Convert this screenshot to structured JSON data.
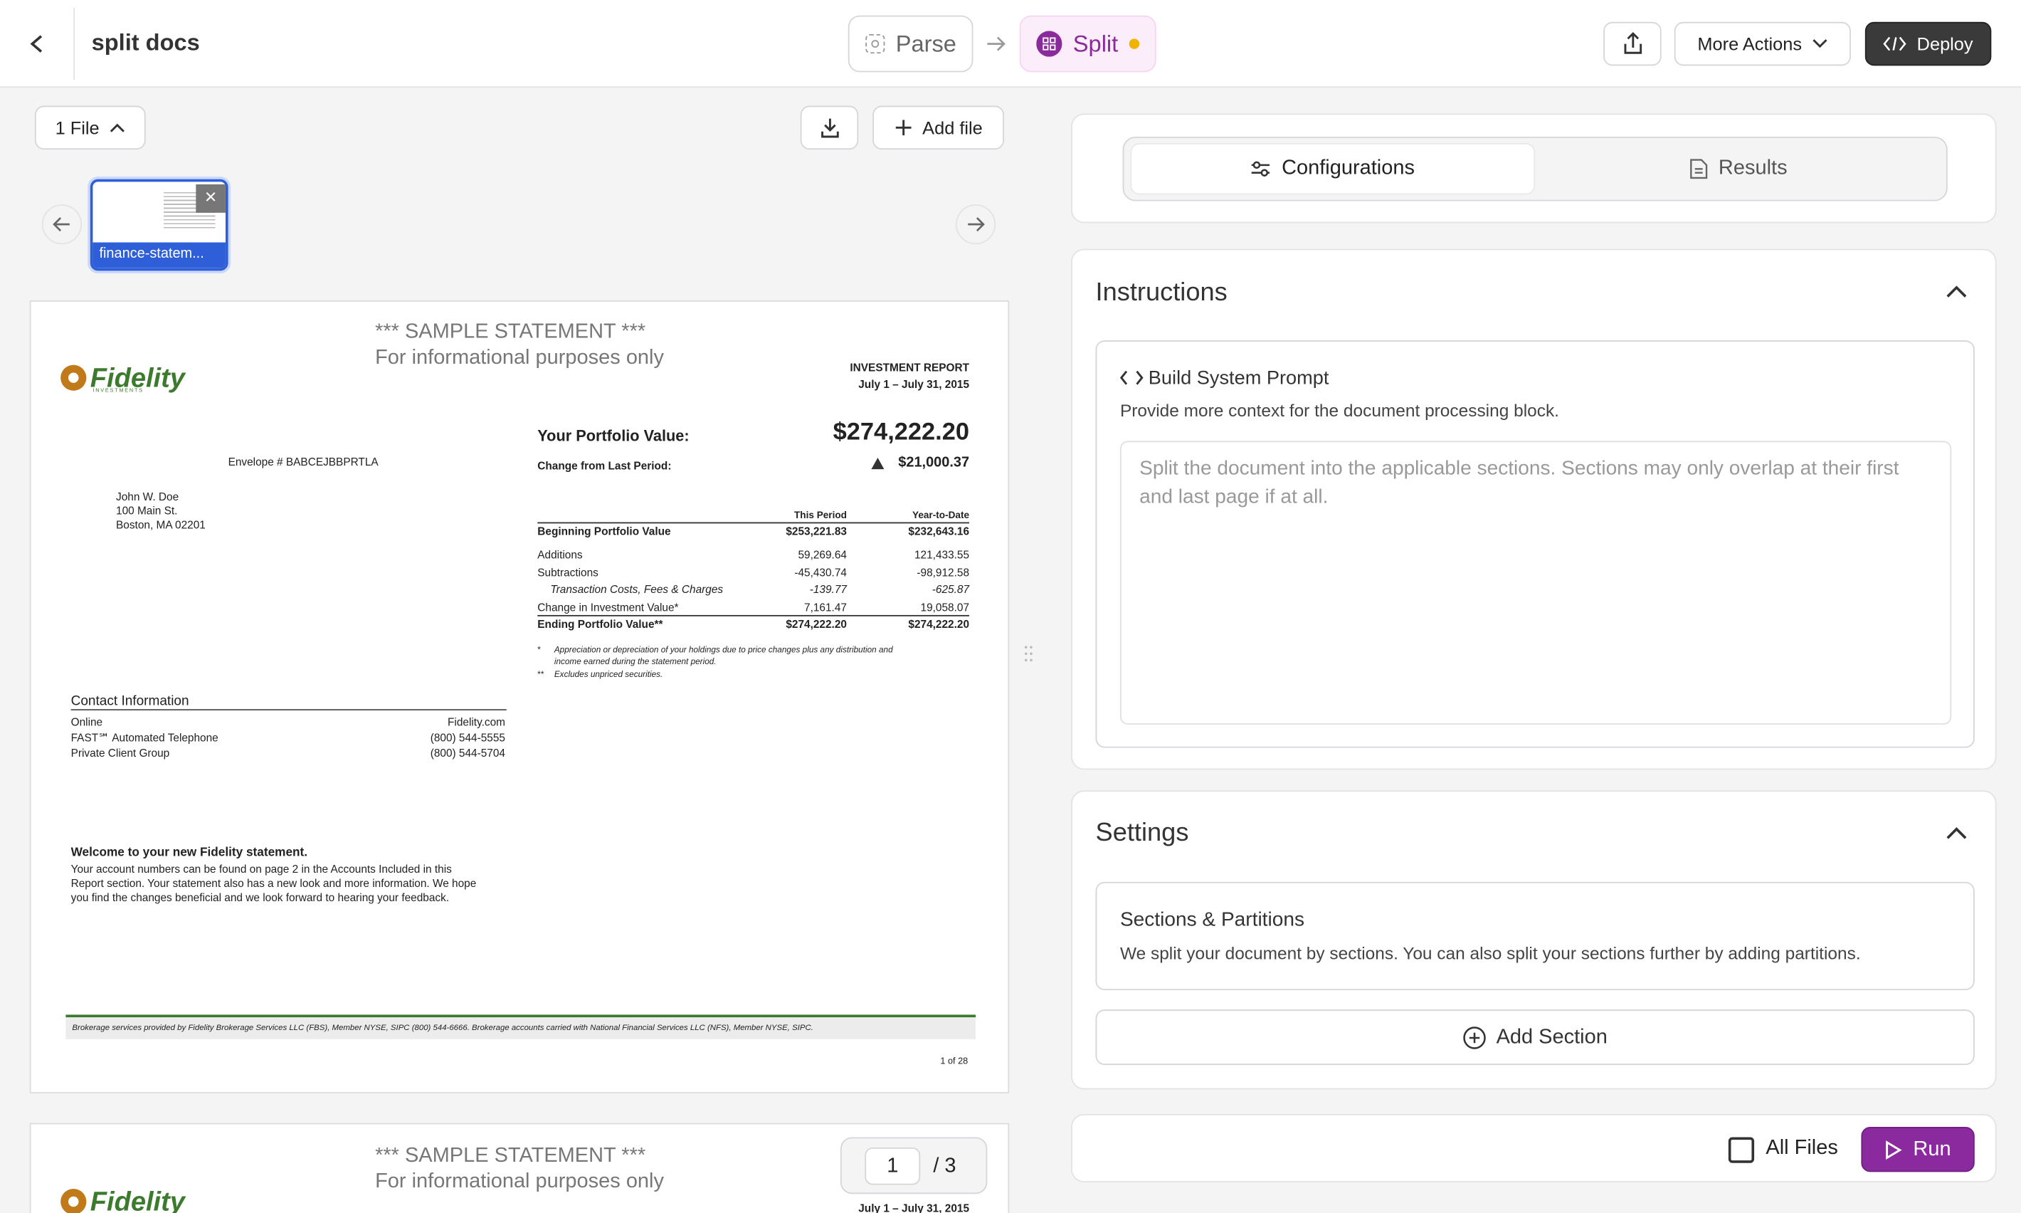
{
  "header": {
    "title": "split docs",
    "steps": [
      "Parse",
      "Split"
    ],
    "more_actions": "More Actions",
    "deploy": "Deploy"
  },
  "files": {
    "file_button": "1 File",
    "add_file": "Add file",
    "thumbnail": "finance-statem..."
  },
  "document": {
    "page1": {
      "sample": "*** SAMPLE STATEMENT ***",
      "purpose": "For informational purposes only",
      "logo": "Fidelity",
      "logo_sub": "INVESTMENTS",
      "report_title": "INVESTMENT REPORT",
      "period": "July 1 – July 31, 2015",
      "envelope": "Envelope # BABCEJBBPRTLA",
      "address": [
        "John W. Doe",
        "100 Main St.",
        "Boston, MA  02201"
      ],
      "portfolio_label": "Your Portfolio Value:",
      "portfolio_value": "$274,222.20",
      "change_label": "Change from Last Period:",
      "change_value": "$21,000.37",
      "table": {
        "columns": [
          "This Period",
          "Year-to-Date"
        ],
        "rows": [
          [
            "Beginning Portfolio Value",
            "$253,221.83",
            "$232,643.16"
          ],
          [
            "Additions",
            "59,269.64",
            "121,433.55"
          ],
          [
            "Subtractions",
            "-45,430.74",
            "-98,912.58"
          ],
          [
            "Transaction Costs, Fees & Charges",
            "-139.77",
            "-625.87"
          ],
          [
            "Change in Investment Value*",
            "7,161.47",
            "19,058.07"
          ],
          [
            "Ending Portfolio Value**",
            "$274,222.20",
            "$274,222.20"
          ]
        ]
      },
      "footnotes": [
        [
          "*",
          "Appreciation or depreciation of your holdings due to price changes plus any distribution and",
          "income earned during the statement period."
        ],
        [
          "**",
          "Excludes unpriced securities.",
          ""
        ]
      ],
      "contact": {
        "title": "Contact Information",
        "rows": [
          [
            "Online",
            "Fidelity.com"
          ],
          [
            "FAST℠ Automated Telephone",
            "(800) 544-5555"
          ],
          [
            "Private Client Group",
            "(800) 544-5704"
          ]
        ]
      },
      "welcome": {
        "title": "Welcome to your new Fidelity statement.",
        "lines": [
          "Your account numbers can be found on page 2 in the Accounts Included in this",
          "Report section. Your statement also has a new look and more information. We hope",
          "you find the changes beneficial and we look forward to hearing your feedback."
        ]
      },
      "footer": "Brokerage services provided by Fidelity Brokerage Services LLC (FBS), Member NYSE, SIPC (800) 544-6666. Brokerage accounts carried with National Financial Services LLC (NFS), Member NYSE, SIPC.",
      "page_number": "1 of 28"
    },
    "page2": {
      "sample": "*** SAMPLE STATEMENT ***",
      "purpose": "For informational purposes only",
      "logo": "Fidelity",
      "period": "July 1 – July 31, 2015"
    },
    "pager": {
      "current": "1",
      "total": "/ 3"
    }
  },
  "config": {
    "tabs": [
      "Configurations",
      "Results"
    ],
    "instructions": {
      "title": "Instructions",
      "prompt_title": "Build System Prompt",
      "prompt_desc": "Provide more context for the document processing block.",
      "placeholder": "Split the document into the applicable sections. Sections may only overlap at their first and last page if at all."
    },
    "settings": {
      "title": "Settings",
      "sections_title": "Sections & Partitions",
      "sections_desc": "We split your document by sections. You can also split your sections further by adding partitions.",
      "add_section": "Add Section"
    },
    "all_files": "All Files",
    "run": "Run"
  }
}
